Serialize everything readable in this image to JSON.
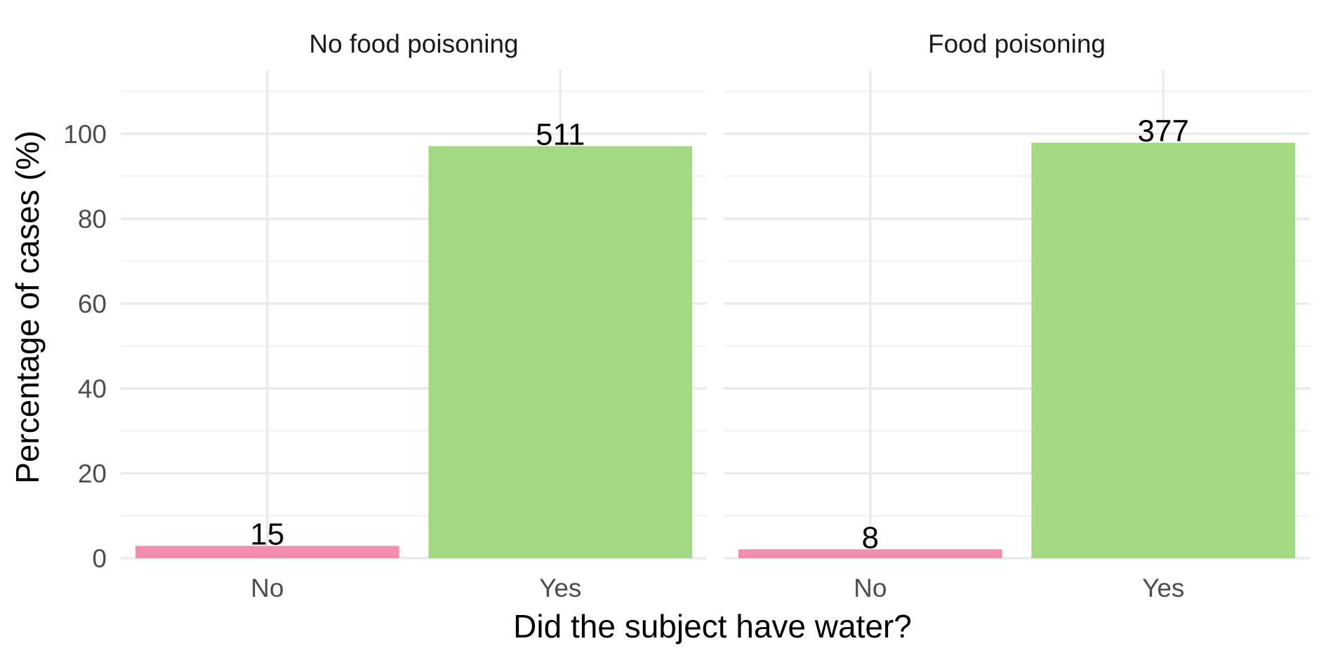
{
  "chart_data": {
    "type": "bar",
    "xlabel": "Did the subject have water?",
    "ylabel": "Percentage of cases (%)",
    "ylim": [
      0,
      115
    ],
    "y_ticks": [
      0,
      20,
      40,
      60,
      80,
      100
    ],
    "grid": true,
    "legend": "none",
    "categories": [
      "No",
      "Yes"
    ],
    "colors": {
      "No": "#f48cb0",
      "Yes": "#a3d984"
    },
    "panels": [
      {
        "title": "No food poisoning",
        "values": [
          2.9,
          97.1
        ],
        "labels": [
          "15",
          "511"
        ]
      },
      {
        "title": "Food poisoning",
        "values": [
          2.1,
          97.9
        ],
        "labels": [
          "8",
          "377"
        ]
      }
    ]
  }
}
